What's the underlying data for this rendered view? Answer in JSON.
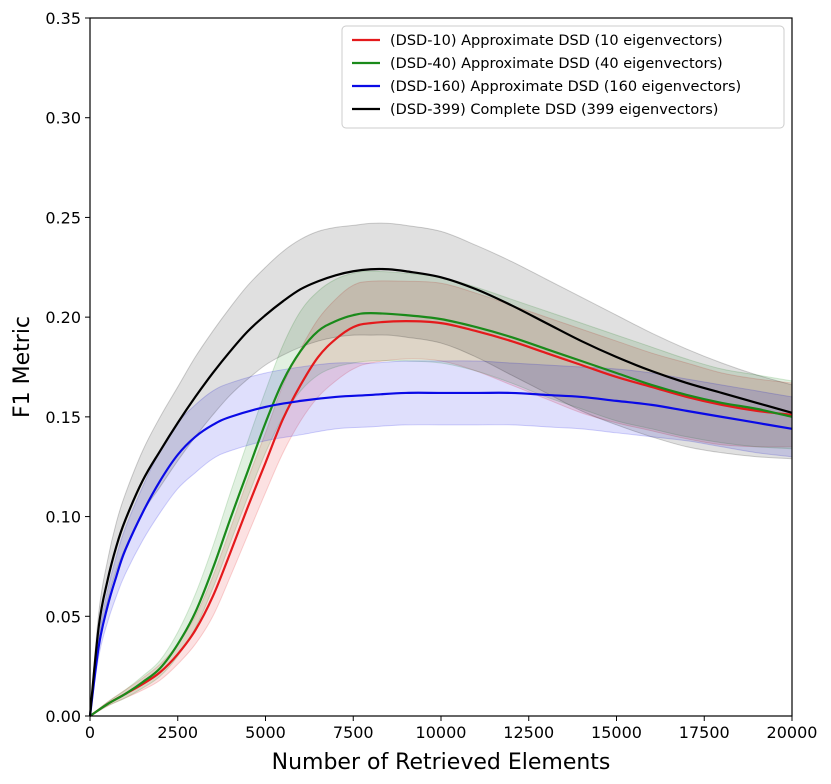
{
  "chart_data": {
    "type": "line",
    "title": "",
    "xlabel": "Number of Retrieved Elements",
    "ylabel": "F1 Metric",
    "xlim": [
      0,
      20000
    ],
    "ylim": [
      0,
      0.35
    ],
    "xticks": [
      0,
      2500,
      5000,
      7500,
      10000,
      12500,
      15000,
      17500,
      20000
    ],
    "xtick_labels": [
      "0",
      "2500",
      "5000",
      "7500",
      "10000",
      "12500",
      "15000",
      "17500",
      "20000"
    ],
    "yticks": [
      0,
      0.05,
      0.1,
      0.15,
      0.2,
      0.25,
      0.3,
      0.35
    ],
    "ytick_labels": [
      "0.00",
      "0.05",
      "0.10",
      "0.15",
      "0.20",
      "0.25",
      "0.30",
      "0.35"
    ],
    "grid": false,
    "legend_position": "top-right",
    "series": [
      {
        "name": "(DSD-10) Approximate DSD (10 eigenvectors)",
        "color": "#e41a1c",
        "x": [
          0,
          500,
          1000,
          1500,
          2000,
          2500,
          3000,
          3500,
          4000,
          4500,
          5000,
          5500,
          6000,
          6500,
          7000,
          7500,
          8000,
          9000,
          10000,
          11000,
          12000,
          13000,
          14000,
          15000,
          16000,
          17000,
          18000,
          19000,
          20000
        ],
        "y": [
          0,
          0.006,
          0.011,
          0.016,
          0.022,
          0.031,
          0.043,
          0.06,
          0.082,
          0.105,
          0.127,
          0.149,
          0.166,
          0.18,
          0.189,
          0.195,
          0.197,
          0.198,
          0.197,
          0.193,
          0.188,
          0.182,
          0.176,
          0.17,
          0.165,
          0.16,
          0.156,
          0.153,
          0.151
        ],
        "lower": [
          0,
          0.005,
          0.009,
          0.013,
          0.018,
          0.026,
          0.036,
          0.05,
          0.07,
          0.091,
          0.112,
          0.132,
          0.148,
          0.16,
          0.168,
          0.174,
          0.177,
          0.179,
          0.178,
          0.173,
          0.166,
          0.159,
          0.152,
          0.147,
          0.143,
          0.139,
          0.136,
          0.135,
          0.135
        ],
        "upper": [
          0,
          0.007,
          0.013,
          0.019,
          0.026,
          0.036,
          0.05,
          0.07,
          0.094,
          0.119,
          0.142,
          0.166,
          0.184,
          0.199,
          0.209,
          0.216,
          0.218,
          0.218,
          0.217,
          0.212,
          0.206,
          0.2,
          0.194,
          0.188,
          0.182,
          0.177,
          0.172,
          0.169,
          0.167
        ]
      },
      {
        "name": "(DSD-40) Approximate DSD (40 eigenvectors)",
        "color": "#1a8a1a",
        "x": [
          0,
          500,
          1000,
          1500,
          2000,
          2500,
          3000,
          3500,
          4000,
          4500,
          5000,
          5500,
          6000,
          6500,
          7000,
          7500,
          8000,
          9000,
          10000,
          11000,
          12000,
          13000,
          14000,
          15000,
          16000,
          17000,
          18000,
          19000,
          20000
        ],
        "y": [
          0,
          0.006,
          0.011,
          0.017,
          0.024,
          0.036,
          0.052,
          0.074,
          0.099,
          0.123,
          0.147,
          0.168,
          0.183,
          0.193,
          0.198,
          0.201,
          0.202,
          0.201,
          0.199,
          0.195,
          0.19,
          0.184,
          0.178,
          0.172,
          0.166,
          0.161,
          0.157,
          0.154,
          0.15
        ],
        "lower": [
          0,
          0.005,
          0.009,
          0.014,
          0.02,
          0.03,
          0.044,
          0.064,
          0.087,
          0.11,
          0.132,
          0.15,
          0.163,
          0.171,
          0.175,
          0.177,
          0.178,
          0.178,
          0.177,
          0.173,
          0.167,
          0.16,
          0.154,
          0.148,
          0.144,
          0.14,
          0.137,
          0.135,
          0.134
        ],
        "upper": [
          0,
          0.007,
          0.013,
          0.02,
          0.028,
          0.042,
          0.061,
          0.085,
          0.112,
          0.138,
          0.163,
          0.186,
          0.203,
          0.213,
          0.219,
          0.222,
          0.223,
          0.222,
          0.22,
          0.215,
          0.209,
          0.203,
          0.197,
          0.191,
          0.185,
          0.179,
          0.174,
          0.171,
          0.168
        ]
      },
      {
        "name": "(DSD-160) Approximate DSD (160 eigenvectors)",
        "color": "#0a0ae6",
        "x": [
          0,
          250,
          500,
          750,
          1000,
          1500,
          2000,
          2500,
          3000,
          3500,
          4000,
          5000,
          6000,
          7000,
          8000,
          9000,
          10000,
          11000,
          12000,
          13000,
          14000,
          15000,
          16000,
          17000,
          18000,
          19000,
          20000
        ],
        "y": [
          0,
          0.035,
          0.055,
          0.07,
          0.083,
          0.102,
          0.118,
          0.131,
          0.14,
          0.146,
          0.15,
          0.155,
          0.158,
          0.16,
          0.161,
          0.162,
          0.162,
          0.162,
          0.162,
          0.161,
          0.16,
          0.158,
          0.156,
          0.153,
          0.15,
          0.147,
          0.144
        ],
        "lower": [
          0,
          0.03,
          0.047,
          0.06,
          0.071,
          0.088,
          0.102,
          0.114,
          0.122,
          0.129,
          0.133,
          0.138,
          0.141,
          0.144,
          0.145,
          0.146,
          0.146,
          0.146,
          0.146,
          0.145,
          0.144,
          0.142,
          0.14,
          0.138,
          0.135,
          0.132,
          0.13
        ],
        "upper": [
          0,
          0.04,
          0.063,
          0.08,
          0.094,
          0.115,
          0.133,
          0.147,
          0.156,
          0.163,
          0.167,
          0.172,
          0.175,
          0.177,
          0.177,
          0.178,
          0.178,
          0.178,
          0.177,
          0.176,
          0.175,
          0.174,
          0.172,
          0.169,
          0.166,
          0.163,
          0.16
        ]
      },
      {
        "name": "(DSD-399) Complete DSD (399 eigenvectors)",
        "color": "#000000",
        "x": [
          0,
          250,
          500,
          750,
          1000,
          1500,
          2000,
          2500,
          3000,
          3500,
          4000,
          4500,
          5000,
          5500,
          6000,
          6500,
          7000,
          7500,
          8000,
          8500,
          9000,
          10000,
          11000,
          12000,
          13000,
          14000,
          15000,
          16000,
          17000,
          18000,
          19000,
          20000
        ],
        "y": [
          0,
          0.045,
          0.068,
          0.085,
          0.098,
          0.118,
          0.133,
          0.147,
          0.16,
          0.172,
          0.183,
          0.193,
          0.201,
          0.208,
          0.214,
          0.218,
          0.221,
          0.223,
          0.224,
          0.224,
          0.223,
          0.22,
          0.214,
          0.206,
          0.197,
          0.188,
          0.18,
          0.173,
          0.167,
          0.162,
          0.157,
          0.152
        ],
        "lower": [
          0,
          0.038,
          0.058,
          0.073,
          0.084,
          0.102,
          0.115,
          0.128,
          0.14,
          0.151,
          0.161,
          0.169,
          0.176,
          0.181,
          0.185,
          0.188,
          0.19,
          0.191,
          0.191,
          0.191,
          0.19,
          0.187,
          0.18,
          0.171,
          0.162,
          0.153,
          0.146,
          0.14,
          0.135,
          0.132,
          0.13,
          0.129
        ],
        "upper": [
          0,
          0.052,
          0.078,
          0.097,
          0.111,
          0.133,
          0.15,
          0.165,
          0.18,
          0.193,
          0.205,
          0.216,
          0.225,
          0.233,
          0.239,
          0.243,
          0.245,
          0.246,
          0.247,
          0.247,
          0.246,
          0.243,
          0.236,
          0.228,
          0.219,
          0.21,
          0.201,
          0.192,
          0.184,
          0.177,
          0.171,
          0.166
        ]
      }
    ]
  }
}
